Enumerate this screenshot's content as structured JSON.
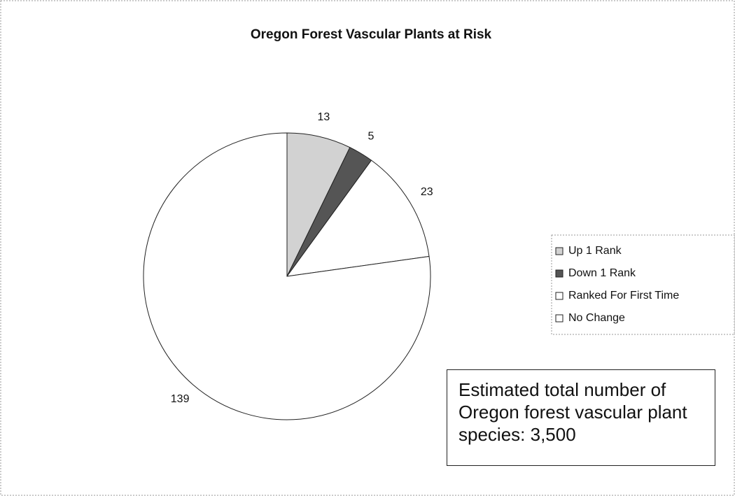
{
  "chart_data": {
    "type": "pie",
    "title": "Oregon Forest Vascular Plants at Risk",
    "categories": [
      "Up 1 Rank",
      "Down 1 Rank",
      "Ranked For First Time",
      "No Change"
    ],
    "values": [
      13,
      5,
      23,
      139
    ],
    "colors": [
      "#d2d2d2",
      "#555555",
      "#ffffff",
      "#ffffff"
    ],
    "legend": "right",
    "annotation": "Estimated total number of Oregon forest vascular plant species: 3,500"
  }
}
